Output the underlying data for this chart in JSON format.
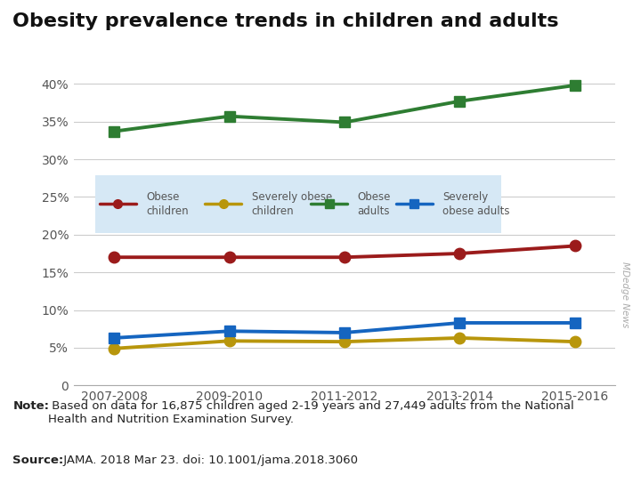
{
  "title": "Obesity prevalence trends in children and adults",
  "x_labels": [
    "2007-2008",
    "2009-2010",
    "2011-2012",
    "2013-2014",
    "2015-2016"
  ],
  "x_vals": [
    0,
    1,
    2,
    3,
    4
  ],
  "series": {
    "obese_children": {
      "values": [
        17.0,
        17.0,
        17.0,
        17.5,
        18.5
      ],
      "color": "#9B1B1B",
      "label_line1": "Obese",
      "label_line2": "children",
      "marker": "o",
      "linewidth": 2.8,
      "markersize": 9
    },
    "severely_obese_children": {
      "values": [
        4.9,
        5.9,
        5.8,
        6.3,
        5.8
      ],
      "color": "#B8960C",
      "label_line1": "Severely obese",
      "label_line2": "children",
      "marker": "o",
      "linewidth": 2.8,
      "markersize": 9
    },
    "obese_adults": {
      "values": [
        33.7,
        35.7,
        34.9,
        37.7,
        39.8
      ],
      "color": "#2E7D32",
      "label_line1": "Obese",
      "label_line2": "adults",
      "marker": "s",
      "linewidth": 2.8,
      "markersize": 9
    },
    "severely_obese_adults": {
      "values": [
        6.3,
        7.2,
        7.0,
        8.3,
        8.3
      ],
      "color": "#1565C0",
      "label_line1": "Severely",
      "label_line2": "obese adults",
      "marker": "s",
      "linewidth": 2.8,
      "markersize": 9
    }
  },
  "ylim": [
    0,
    42
  ],
  "yticks": [
    0,
    5,
    10,
    15,
    20,
    25,
    30,
    35,
    40
  ],
  "ytick_labels": [
    "0",
    "5%",
    "10%",
    "15%",
    "20%",
    "25%",
    "30%",
    "35%",
    "40%"
  ],
  "note_bold": "Note:",
  "note_rest": " Based on data for 16,875 children aged 2-19 years and 27,449 adults from the National\nHealth and Nutrition Examination Survey.",
  "source_bold": "Source:",
  "source_rest": " JAMA. 2018 Mar 23. doi: 10.1001/jama.2018.3060",
  "watermark": "MDedge News",
  "legend_bg_color": "#D6E8F5",
  "bg_color": "#FFFFFF",
  "grid_color": "#CCCCCC",
  "title_fontsize": 16,
  "tick_fontsize": 10,
  "note_fontsize": 9.5,
  "source_fontsize": 9.5
}
